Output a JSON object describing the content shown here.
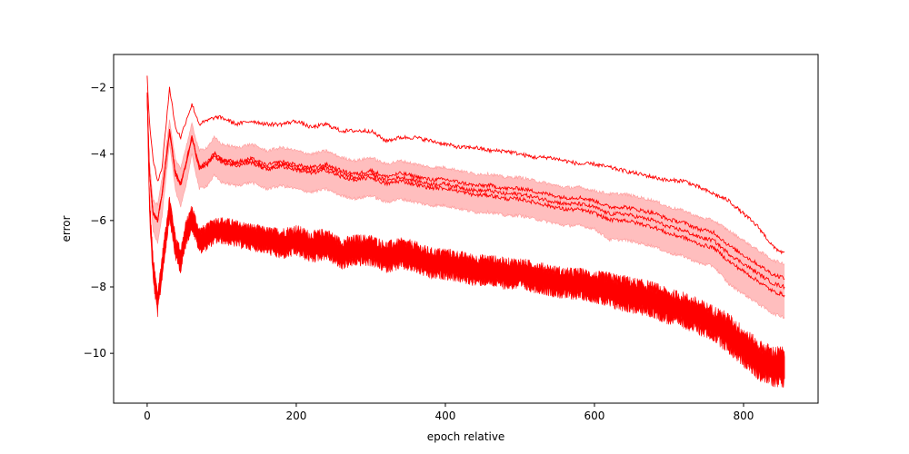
{
  "chart_data": {
    "type": "line",
    "title": "",
    "xlabel": "epoch relative",
    "ylabel": "error",
    "xlim": [
      -45,
      900
    ],
    "ylim": [
      -11.5,
      -1.0
    ],
    "x_ticks": [
      0,
      200,
      400,
      600,
      800
    ],
    "x_tick_labels": [
      "0",
      "200",
      "400",
      "600",
      "800"
    ],
    "y_ticks": [
      -10,
      -8,
      -6,
      -4,
      -2
    ],
    "y_tick_labels": [
      "−10",
      "−8",
      "−6",
      "−4",
      "−2"
    ],
    "grid": false,
    "legend": false,
    "line_color": "#ff0000",
    "band_color": "#ffb3b3",
    "series": [
      {
        "role": "upper",
        "x": [
          0,
          3,
          8,
          14,
          20,
          30,
          38,
          45,
          52,
          60,
          70,
          80,
          90,
          100,
          120,
          140,
          160,
          180,
          200,
          220,
          240,
          260,
          280,
          300,
          320,
          340,
          360,
          380,
          400,
          420,
          440,
          460,
          480,
          500,
          520,
          540,
          560,
          580,
          600,
          620,
          640,
          660,
          680,
          700,
          720,
          740,
          760,
          780,
          800,
          820,
          840,
          855
        ],
        "y": [
          -1.7,
          -3.0,
          -4.2,
          -4.8,
          -4.4,
          -2.0,
          -3.2,
          -3.5,
          -3.0,
          -2.5,
          -3.1,
          -3.0,
          -2.9,
          -2.9,
          -3.1,
          -3.0,
          -3.1,
          -3.1,
          -3.0,
          -3.2,
          -3.1,
          -3.3,
          -3.3,
          -3.3,
          -3.6,
          -3.5,
          -3.5,
          -3.6,
          -3.7,
          -3.8,
          -3.8,
          -3.9,
          -3.9,
          -4.0,
          -4.1,
          -4.1,
          -4.2,
          -4.3,
          -4.3,
          -4.4,
          -4.5,
          -4.6,
          -4.7,
          -4.8,
          -4.8,
          -5.0,
          -5.2,
          -5.4,
          -5.8,
          -6.2,
          -6.8,
          -7.0
        ]
      },
      {
        "role": "mean-band",
        "x": [
          0,
          3,
          8,
          14,
          20,
          30,
          38,
          45,
          52,
          60,
          70,
          80,
          90,
          100,
          120,
          140,
          160,
          180,
          200,
          220,
          240,
          260,
          280,
          300,
          320,
          340,
          360,
          380,
          400,
          420,
          440,
          460,
          480,
          500,
          520,
          540,
          560,
          580,
          600,
          620,
          640,
          660,
          680,
          700,
          720,
          740,
          760,
          780,
          800,
          820,
          840,
          855
        ],
        "y": [
          -2.2,
          -4.5,
          -5.8,
          -6.0,
          -5.2,
          -3.3,
          -4.6,
          -4.9,
          -4.3,
          -3.5,
          -4.4,
          -4.3,
          -4.0,
          -4.2,
          -4.3,
          -4.2,
          -4.4,
          -4.3,
          -4.4,
          -4.5,
          -4.4,
          -4.6,
          -4.7,
          -4.6,
          -4.8,
          -4.7,
          -4.8,
          -4.9,
          -4.9,
          -5.0,
          -5.1,
          -5.1,
          -5.2,
          -5.2,
          -5.3,
          -5.4,
          -5.5,
          -5.5,
          -5.6,
          -5.8,
          -5.8,
          -5.9,
          -6.0,
          -6.2,
          -6.3,
          -6.5,
          -6.6,
          -7.0,
          -7.3,
          -7.6,
          -7.9,
          -8.0
        ],
        "spread": [
          0.0,
          0.3,
          0.4,
          0.5,
          0.5,
          0.3,
          0.4,
          0.5,
          0.5,
          0.4,
          0.5,
          0.5,
          0.5,
          0.5,
          0.5,
          0.5,
          0.5,
          0.5,
          0.5,
          0.5,
          0.5,
          0.5,
          0.5,
          0.5,
          0.5,
          0.5,
          0.5,
          0.5,
          0.5,
          0.5,
          0.5,
          0.5,
          0.5,
          0.5,
          0.5,
          0.5,
          0.5,
          0.5,
          0.5,
          0.6,
          0.6,
          0.6,
          0.6,
          0.6,
          0.6,
          0.6,
          0.6,
          0.7,
          0.7,
          0.7,
          0.7,
          0.7
        ]
      },
      {
        "role": "lower-noisy",
        "x": [
          0,
          3,
          8,
          14,
          20,
          30,
          38,
          45,
          52,
          60,
          70,
          80,
          90,
          100,
          120,
          140,
          160,
          180,
          200,
          220,
          240,
          260,
          280,
          300,
          320,
          340,
          360,
          380,
          400,
          420,
          440,
          460,
          480,
          500,
          520,
          540,
          560,
          580,
          600,
          620,
          640,
          660,
          680,
          700,
          720,
          740,
          760,
          780,
          800,
          820,
          840,
          855
        ],
        "y": [
          -2.2,
          -5.5,
          -7.5,
          -8.5,
          -7.4,
          -5.6,
          -6.8,
          -7.2,
          -6.4,
          -5.9,
          -6.6,
          -6.5,
          -6.3,
          -6.3,
          -6.4,
          -6.5,
          -6.6,
          -6.7,
          -6.6,
          -6.8,
          -6.7,
          -7.0,
          -6.9,
          -6.9,
          -7.1,
          -7.0,
          -7.1,
          -7.3,
          -7.3,
          -7.4,
          -7.5,
          -7.5,
          -7.6,
          -7.6,
          -7.7,
          -7.8,
          -7.9,
          -7.9,
          -8.0,
          -8.1,
          -8.2,
          -8.3,
          -8.4,
          -8.6,
          -8.7,
          -8.9,
          -9.1,
          -9.4,
          -9.8,
          -10.2,
          -10.4,
          -10.4
        ],
        "noise": [
          0.0,
          0.3,
          0.3,
          0.3,
          0.3,
          0.3,
          0.3,
          0.3,
          0.3,
          0.3,
          0.3,
          0.3,
          0.3,
          0.3,
          0.3,
          0.3,
          0.3,
          0.35,
          0.35,
          0.35,
          0.35,
          0.35,
          0.35,
          0.35,
          0.35,
          0.35,
          0.35,
          0.35,
          0.35,
          0.35,
          0.35,
          0.35,
          0.35,
          0.35,
          0.35,
          0.35,
          0.35,
          0.35,
          0.35,
          0.4,
          0.4,
          0.4,
          0.4,
          0.4,
          0.4,
          0.4,
          0.4,
          0.45,
          0.45,
          0.45,
          0.45,
          0.45
        ]
      }
    ]
  }
}
